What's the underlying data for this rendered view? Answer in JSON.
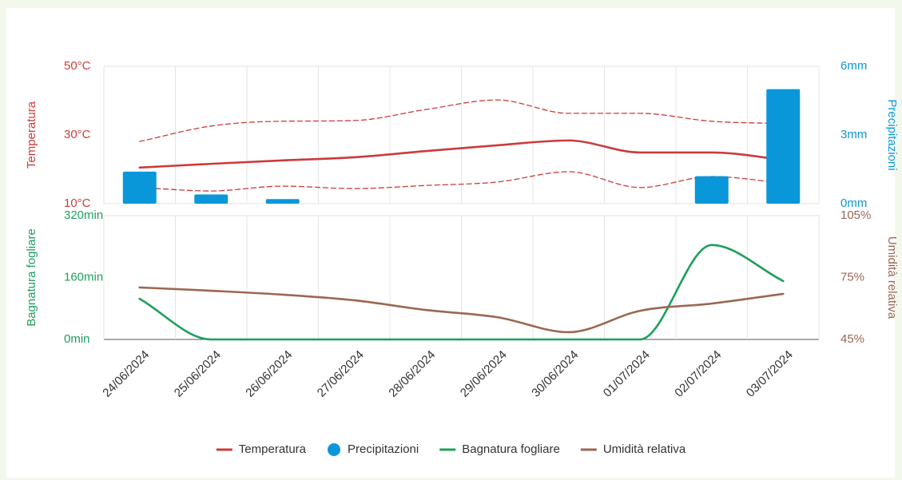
{
  "chart_data": [
    {
      "type": "line",
      "ylabel": "Temperatura",
      "y2label": "Precipitazioni",
      "ylim": [
        10,
        50
      ],
      "yticks": [
        {
          "value": 10,
          "label": "10°C"
        },
        {
          "value": 30,
          "label": "30°C"
        },
        {
          "value": 50,
          "label": "50°C"
        }
      ],
      "y2lim": [
        0,
        6
      ],
      "y2ticks": [
        {
          "value": 0,
          "label": "0mm"
        },
        {
          "value": 3,
          "label": "3mm"
        },
        {
          "value": 6,
          "label": "6mm"
        }
      ],
      "series": [
        {
          "name": "Temperatura",
          "color": "#cc3b3b",
          "values": [
            20.5,
            21.6,
            22.6,
            23.5,
            25.3,
            27,
            28.4,
            24.9,
            24.9,
            22.8
          ]
        },
        {
          "color": "#cc3b3b",
          "dashed": true,
          "values": [
            28.1,
            32.6,
            34,
            34.2,
            37.4,
            40.2,
            36.3,
            36.3,
            34,
            33.3
          ]
        },
        {
          "color": "#cc3b3b",
          "dashed": true,
          "values": [
            14.7,
            13.7,
            15.1,
            14.4,
            15.3,
            16.3,
            19.3,
            14.7,
            17.9,
            16
          ]
        },
        {
          "name": "Precipitazioni",
          "type": "bar",
          "axis": "y2",
          "color": "#0a97d9",
          "values": [
            1.4,
            0.4,
            0.2,
            0,
            0,
            0,
            0,
            0,
            1.2,
            5
          ]
        }
      ]
    },
    {
      "type": "line",
      "ylabel": "Bagnatura fogliare",
      "y2label": "Umidità relativa",
      "categories": [
        "24/06/2024",
        "25/06/2024",
        "26/06/2024",
        "27/06/2024",
        "28/06/2024",
        "29/06/2024",
        "30/06/2024",
        "01/07/2024",
        "02/07/2024",
        "03/07/2024"
      ],
      "ylim": [
        0,
        320
      ],
      "yticks": [
        {
          "value": 0,
          "label": "0min"
        },
        {
          "value": 160,
          "label": "160min"
        },
        {
          "value": 320,
          "label": "320min"
        }
      ],
      "y2lim": [
        45,
        105
      ],
      "y2ticks": [
        {
          "value": 45,
          "label": "45%"
        },
        {
          "value": 75,
          "label": "75%"
        },
        {
          "value": 105,
          "label": "105%"
        }
      ],
      "series": [
        {
          "name": "Bagnatura fogliare",
          "color": "#1e9e5e",
          "values": [
            105,
            0,
            0,
            0,
            0,
            0,
            0,
            0,
            244,
            151
          ]
        },
        {
          "name": "Umidità relativa",
          "axis": "y2",
          "color": "#9a6753",
          "values": [
            70.2,
            68.6,
            66.7,
            64,
            59.3,
            55.8,
            48.5,
            58.9,
            62.4,
            67.1
          ]
        }
      ]
    }
  ]
}
